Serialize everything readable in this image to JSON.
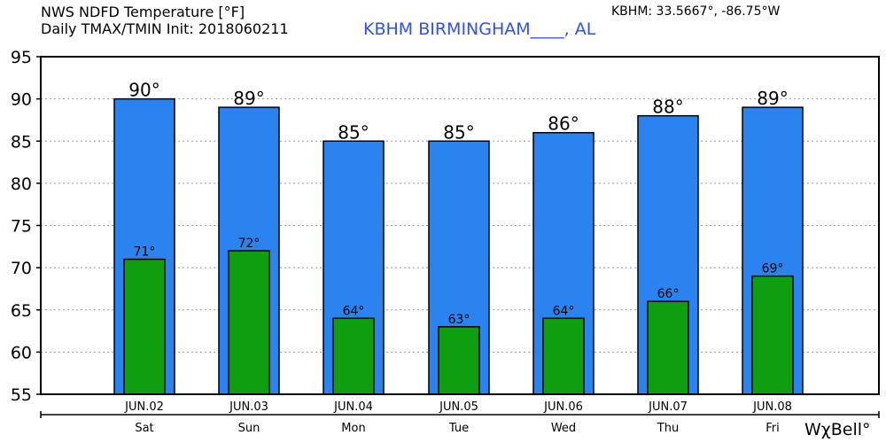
{
  "header": {
    "title_line1": "NWS NDFD Temperature [°F]",
    "title_line2": "Daily TMAX/TMIN Init: 2018060211",
    "station": "KBHM BIRMINGHAM____, AL",
    "coords": "KBHM: 33.5667°, -86.75°W",
    "logo": "WχBell°"
  },
  "colors": {
    "tmax": "#2b83ef",
    "tmin": "#0f9e10",
    "station_text": "#3050f0"
  },
  "chart_data": {
    "type": "bar",
    "categories": [
      "JUN.02",
      "JUN.03",
      "JUN.04",
      "JUN.05",
      "JUN.06",
      "JUN.07",
      "JUN.08"
    ],
    "days": [
      "Sat",
      "Sun",
      "Mon",
      "Tue",
      "Wed",
      "Thu",
      "Fri"
    ],
    "series": [
      {
        "name": "TMAX",
        "values": [
          90,
          89,
          85,
          85,
          86,
          88,
          89
        ],
        "labels": [
          "90°",
          "89°",
          "85°",
          "85°",
          "86°",
          "88°",
          "89°"
        ]
      },
      {
        "name": "TMIN",
        "values": [
          71,
          72,
          64,
          63,
          64,
          66,
          69
        ],
        "labels": [
          "71°",
          "72°",
          "64°",
          "63°",
          "64°",
          "66°",
          "69°"
        ]
      }
    ],
    "ylim": [
      55,
      95
    ],
    "yticks": [
      55,
      60,
      65,
      70,
      75,
      80,
      85,
      90,
      95
    ],
    "grid": true
  }
}
